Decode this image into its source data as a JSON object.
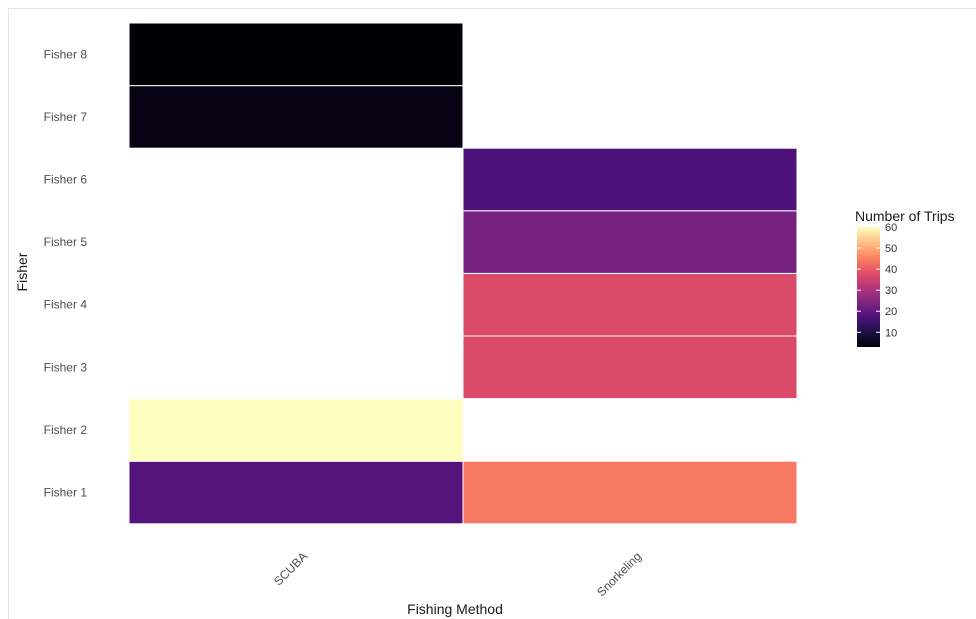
{
  "chart_data": {
    "type": "heatmap",
    "title": "",
    "xlabel": "Fishing Method",
    "ylabel": "Fisher",
    "x_categories": [
      "SCUBA",
      "Snorkeling"
    ],
    "y_categories": [
      "Fisher 1",
      "Fisher 2",
      "Fisher 3",
      "Fisher 4",
      "Fisher 5",
      "Fisher 6",
      "Fisher 7",
      "Fisher 8"
    ],
    "cells": [
      {
        "x": "SCUBA",
        "y": "Fisher 1",
        "value": 18
      },
      {
        "x": "SCUBA",
        "y": "Fisher 2",
        "value": 60
      },
      {
        "x": "SCUBA",
        "y": "Fisher 7",
        "value": 5
      },
      {
        "x": "SCUBA",
        "y": "Fisher 8",
        "value": 3
      },
      {
        "x": "Snorkeling",
        "y": "Fisher 1",
        "value": 44
      },
      {
        "x": "Snorkeling",
        "y": "Fisher 3",
        "value": 37
      },
      {
        "x": "Snorkeling",
        "y": "Fisher 4",
        "value": 37
      },
      {
        "x": "Snorkeling",
        "y": "Fisher 5",
        "value": 23
      },
      {
        "x": "Snorkeling",
        "y": "Fisher 6",
        "value": 17
      }
    ],
    "legend": {
      "title": "Number of Trips",
      "ticks": [
        10,
        20,
        30,
        40,
        50,
        60
      ],
      "range": [
        3,
        60
      ],
      "colormap": "magma",
      "placement": "right"
    },
    "grid": false
  }
}
